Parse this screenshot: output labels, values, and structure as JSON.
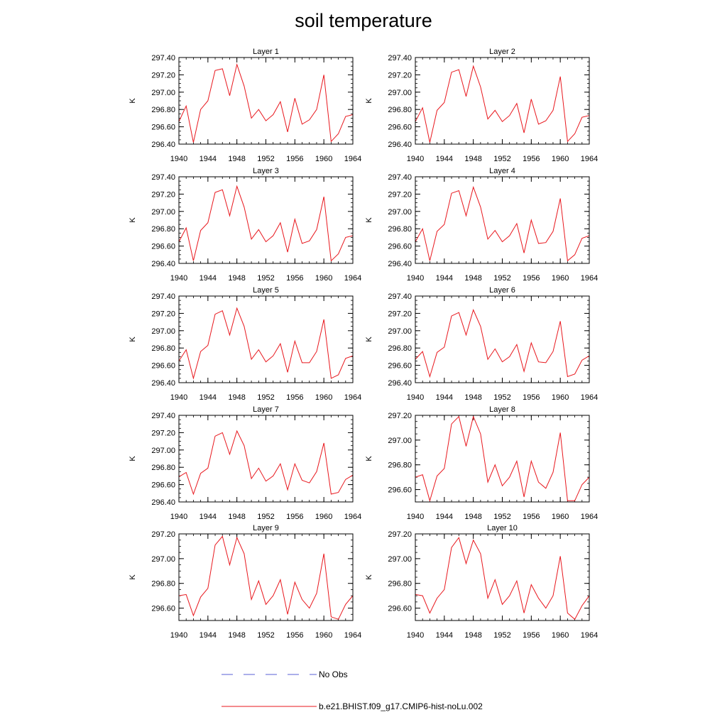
{
  "title": "soil temperature",
  "legend": {
    "placement": "bottom-center",
    "entries": [
      {
        "label": "No Obs",
        "style": "dashed",
        "color": "#5a5fd6"
      },
      {
        "label": "b.e21.BHIST.f09_g17.CMIP6-hist-noLu.002",
        "style": "solid",
        "color": "#e8171d"
      }
    ]
  },
  "colors": {
    "series": "#e8171d",
    "no_obs": "#5a5fd6",
    "axis": "#000000"
  },
  "chart_data": [
    {
      "type": "line",
      "title": "Layer 1",
      "ylabel": "K",
      "xlim": [
        1940,
        1964
      ],
      "ylim": [
        296.4,
        297.4
      ],
      "xticks": [
        "1940",
        "1944",
        "1948",
        "1952",
        "1956",
        "1960",
        "1964"
      ],
      "yticks": [
        "296.40",
        "296.60",
        "296.80",
        "297.00",
        "297.20",
        "297.40"
      ],
      "x": [
        1940,
        1941,
        1942,
        1943,
        1944,
        1945,
        1946,
        1947,
        1948,
        1949,
        1950,
        1951,
        1952,
        1953,
        1954,
        1955,
        1956,
        1957,
        1958,
        1959,
        1960,
        1961,
        1962,
        1963,
        1964
      ],
      "series": [
        {
          "name": "b.e21.BHIST.f09_g17.CMIP6-hist-noLu.002",
          "values": [
            296.66,
            296.84,
            296.42,
            296.8,
            296.9,
            297.25,
            297.27,
            296.96,
            297.32,
            297.07,
            296.7,
            296.8,
            296.67,
            296.74,
            296.89,
            296.54,
            296.93,
            296.63,
            296.68,
            296.8,
            297.2,
            296.43,
            296.52,
            296.72,
            296.74
          ]
        }
      ]
    },
    {
      "type": "line",
      "title": "Layer 2",
      "ylabel": "K",
      "xlim": [
        1940,
        1964
      ],
      "ylim": [
        296.4,
        297.4
      ],
      "xticks": [
        "1940",
        "1944",
        "1948",
        "1952",
        "1956",
        "1960",
        "1964"
      ],
      "yticks": [
        "296.40",
        "296.60",
        "296.80",
        "297.00",
        "297.20",
        "297.40"
      ],
      "x": [
        1940,
        1941,
        1942,
        1943,
        1944,
        1945,
        1946,
        1947,
        1948,
        1949,
        1950,
        1951,
        1952,
        1953,
        1954,
        1955,
        1956,
        1957,
        1958,
        1959,
        1960,
        1961,
        1962,
        1963,
        1964
      ],
      "series": [
        {
          "name": "b.e21.BHIST.f09_g17.CMIP6-hist-noLu.002",
          "values": [
            296.66,
            296.82,
            296.42,
            296.79,
            296.88,
            297.23,
            297.26,
            296.95,
            297.3,
            297.06,
            296.69,
            296.79,
            296.66,
            296.73,
            296.87,
            296.53,
            296.92,
            296.63,
            296.67,
            296.79,
            297.18,
            296.43,
            296.52,
            296.71,
            296.73
          ]
        }
      ]
    },
    {
      "type": "line",
      "title": "Layer 3",
      "ylabel": "K",
      "xlim": [
        1940,
        1964
      ],
      "ylim": [
        296.4,
        297.4
      ],
      "xticks": [
        "1940",
        "1944",
        "1948",
        "1952",
        "1956",
        "1960",
        "1964"
      ],
      "yticks": [
        "296.40",
        "296.60",
        "296.80",
        "297.00",
        "297.20",
        "297.40"
      ],
      "x": [
        1940,
        1941,
        1942,
        1943,
        1944,
        1945,
        1946,
        1947,
        1948,
        1949,
        1950,
        1951,
        1952,
        1953,
        1954,
        1955,
        1956,
        1957,
        1958,
        1959,
        1960,
        1961,
        1962,
        1963,
        1964
      ],
      "series": [
        {
          "name": "b.e21.BHIST.f09_g17.CMIP6-hist-noLu.002",
          "values": [
            296.65,
            296.81,
            296.43,
            296.78,
            296.87,
            297.22,
            297.25,
            296.95,
            297.29,
            297.05,
            296.68,
            296.79,
            296.65,
            296.72,
            296.87,
            296.53,
            296.91,
            296.63,
            296.66,
            296.79,
            297.17,
            296.43,
            296.51,
            296.7,
            296.72
          ]
        }
      ]
    },
    {
      "type": "line",
      "title": "Layer 4",
      "ylabel": "K",
      "xlim": [
        1940,
        1964
      ],
      "ylim": [
        296.4,
        297.4
      ],
      "xticks": [
        "1940",
        "1944",
        "1948",
        "1952",
        "1956",
        "1960",
        "1964"
      ],
      "yticks": [
        "296.40",
        "296.60",
        "296.80",
        "297.00",
        "297.20",
        "297.40"
      ],
      "x": [
        1940,
        1941,
        1942,
        1943,
        1944,
        1945,
        1946,
        1947,
        1948,
        1949,
        1950,
        1951,
        1952,
        1953,
        1954,
        1955,
        1956,
        1957,
        1958,
        1959,
        1960,
        1961,
        1962,
        1963,
        1964
      ],
      "series": [
        {
          "name": "b.e21.BHIST.f09_g17.CMIP6-hist-noLu.002",
          "values": [
            296.65,
            296.8,
            296.43,
            296.77,
            296.85,
            297.21,
            297.24,
            296.95,
            297.28,
            297.05,
            296.68,
            296.78,
            296.65,
            296.72,
            296.86,
            296.52,
            296.9,
            296.63,
            296.64,
            296.77,
            297.15,
            296.43,
            296.5,
            296.69,
            296.72
          ]
        }
      ]
    },
    {
      "type": "line",
      "title": "Layer 5",
      "ylabel": "K",
      "xlim": [
        1940,
        1964
      ],
      "ylim": [
        296.4,
        297.4
      ],
      "xticks": [
        "1940",
        "1944",
        "1948",
        "1952",
        "1956",
        "1960",
        "1964"
      ],
      "yticks": [
        "296.40",
        "296.60",
        "296.80",
        "297.00",
        "297.20",
        "297.40"
      ],
      "x": [
        1940,
        1941,
        1942,
        1943,
        1944,
        1945,
        1946,
        1947,
        1948,
        1949,
        1950,
        1951,
        1952,
        1953,
        1954,
        1955,
        1956,
        1957,
        1958,
        1959,
        1960,
        1961,
        1962,
        1963,
        1964
      ],
      "series": [
        {
          "name": "b.e21.BHIST.f09_g17.CMIP6-hist-noLu.002",
          "values": [
            296.65,
            296.78,
            296.45,
            296.76,
            296.83,
            297.19,
            297.23,
            296.95,
            297.26,
            297.05,
            296.67,
            296.78,
            296.64,
            296.71,
            296.85,
            296.52,
            296.88,
            296.63,
            296.63,
            296.76,
            297.13,
            296.45,
            296.49,
            296.68,
            296.71
          ]
        }
      ]
    },
    {
      "type": "line",
      "title": "Layer 6",
      "ylabel": "K",
      "xlim": [
        1940,
        1964
      ],
      "ylim": [
        296.4,
        297.4
      ],
      "xticks": [
        "1940",
        "1944",
        "1948",
        "1952",
        "1956",
        "1960",
        "1964"
      ],
      "yticks": [
        "296.40",
        "296.60",
        "296.80",
        "297.00",
        "297.20",
        "297.40"
      ],
      "x": [
        1940,
        1941,
        1942,
        1943,
        1944,
        1945,
        1946,
        1947,
        1948,
        1949,
        1950,
        1951,
        1952,
        1953,
        1954,
        1955,
        1956,
        1957,
        1958,
        1959,
        1960,
        1961,
        1962,
        1963,
        1964
      ],
      "series": [
        {
          "name": "b.e21.BHIST.f09_g17.CMIP6-hist-noLu.002",
          "values": [
            296.67,
            296.76,
            296.47,
            296.75,
            296.81,
            297.17,
            297.21,
            296.95,
            297.24,
            297.05,
            296.67,
            296.79,
            296.64,
            296.7,
            296.84,
            296.53,
            296.86,
            296.64,
            296.63,
            296.76,
            297.11,
            296.47,
            296.5,
            296.66,
            296.71
          ]
        }
      ]
    },
    {
      "type": "line",
      "title": "Layer 7",
      "ylabel": "K",
      "xlim": [
        1940,
        1964
      ],
      "ylim": [
        296.4,
        297.4
      ],
      "xticks": [
        "1940",
        "1944",
        "1948",
        "1952",
        "1956",
        "1960",
        "1964"
      ],
      "yticks": [
        "296.40",
        "296.60",
        "296.80",
        "297.00",
        "297.20",
        "297.40"
      ],
      "x": [
        1940,
        1941,
        1942,
        1943,
        1944,
        1945,
        1946,
        1947,
        1948,
        1949,
        1950,
        1951,
        1952,
        1953,
        1954,
        1955,
        1956,
        1957,
        1958,
        1959,
        1960,
        1961,
        1962,
        1963,
        1964
      ],
      "series": [
        {
          "name": "b.e21.BHIST.f09_g17.CMIP6-hist-noLu.002",
          "values": [
            296.69,
            296.74,
            296.49,
            296.73,
            296.79,
            297.16,
            297.2,
            296.95,
            297.22,
            297.05,
            296.67,
            296.79,
            296.64,
            296.7,
            296.84,
            296.54,
            296.84,
            296.65,
            296.62,
            296.75,
            297.08,
            296.49,
            296.51,
            296.66,
            296.71
          ]
        }
      ]
    },
    {
      "type": "line",
      "title": "Layer 8",
      "ylabel": "K",
      "xlim": [
        1940,
        1964
      ],
      "ylim": [
        296.5,
        297.2
      ],
      "xticks": [
        "1940",
        "1944",
        "1948",
        "1952",
        "1956",
        "1960",
        "1964"
      ],
      "yticks": [
        "296.60",
        "296.80",
        "297.00",
        "297.20"
      ],
      "x": [
        1940,
        1941,
        1942,
        1943,
        1944,
        1945,
        1946,
        1947,
        1948,
        1949,
        1950,
        1951,
        1952,
        1953,
        1954,
        1955,
        1956,
        1957,
        1958,
        1959,
        1960,
        1961,
        1962,
        1963,
        1964
      ],
      "series": [
        {
          "name": "b.e21.BHIST.f09_g17.CMIP6-hist-noLu.002",
          "values": [
            296.7,
            296.72,
            296.51,
            296.71,
            296.77,
            297.13,
            297.19,
            296.95,
            297.19,
            297.05,
            296.66,
            296.8,
            296.63,
            296.7,
            296.83,
            296.54,
            296.83,
            296.66,
            296.61,
            296.74,
            297.06,
            296.51,
            296.51,
            296.64,
            296.7
          ]
        }
      ]
    },
    {
      "type": "line",
      "title": "Layer 9",
      "ylabel": "K",
      "xlim": [
        1940,
        1964
      ],
      "ylim": [
        296.5,
        297.2
      ],
      "xticks": [
        "1940",
        "1944",
        "1948",
        "1952",
        "1956",
        "1960",
        "1964"
      ],
      "yticks": [
        "296.60",
        "296.80",
        "297.00",
        "297.20"
      ],
      "x": [
        1940,
        1941,
        1942,
        1943,
        1944,
        1945,
        1946,
        1947,
        1948,
        1949,
        1950,
        1951,
        1952,
        1953,
        1954,
        1955,
        1956,
        1957,
        1958,
        1959,
        1960,
        1961,
        1962,
        1963,
        1964
      ],
      "series": [
        {
          "name": "b.e21.BHIST.f09_g17.CMIP6-hist-noLu.002",
          "values": [
            296.7,
            296.71,
            296.54,
            296.69,
            296.76,
            297.11,
            297.18,
            296.95,
            297.17,
            297.04,
            296.67,
            296.82,
            296.63,
            296.7,
            296.83,
            296.55,
            296.81,
            296.67,
            296.6,
            296.72,
            297.04,
            296.53,
            296.51,
            296.63,
            296.7
          ]
        }
      ]
    },
    {
      "type": "line",
      "title": "Layer 10",
      "ylabel": "K",
      "xlim": [
        1940,
        1964
      ],
      "ylim": [
        296.5,
        297.2
      ],
      "xticks": [
        "1940",
        "1944",
        "1948",
        "1952",
        "1956",
        "1960",
        "1964"
      ],
      "yticks": [
        "296.60",
        "296.80",
        "297.00",
        "297.20"
      ],
      "x": [
        1940,
        1941,
        1942,
        1943,
        1944,
        1945,
        1946,
        1947,
        1948,
        1949,
        1950,
        1951,
        1952,
        1953,
        1954,
        1955,
        1956,
        1957,
        1958,
        1959,
        1960,
        1961,
        1962,
        1963,
        1964
      ],
      "series": [
        {
          "name": "b.e21.BHIST.f09_g17.CMIP6-hist-noLu.002",
          "values": [
            296.71,
            296.7,
            296.56,
            296.68,
            296.75,
            297.09,
            297.17,
            296.96,
            297.15,
            297.04,
            296.68,
            296.83,
            296.63,
            296.7,
            296.82,
            296.56,
            296.79,
            296.68,
            296.6,
            296.7,
            297.02,
            296.56,
            296.51,
            296.62,
            296.7
          ]
        }
      ]
    }
  ]
}
